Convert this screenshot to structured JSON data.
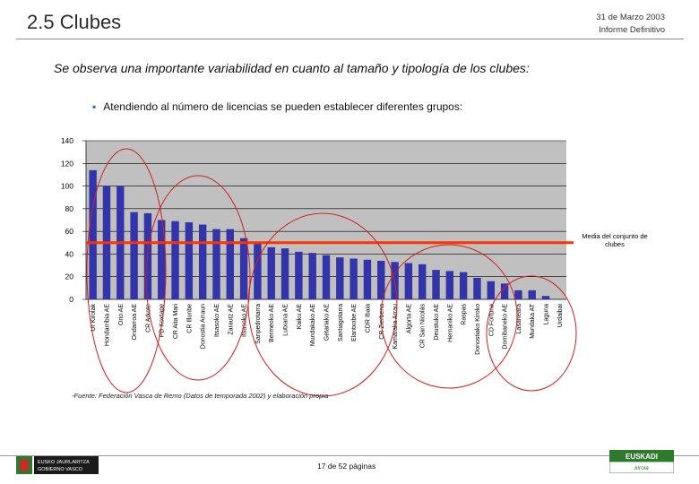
{
  "header": {
    "title": "2.5 Clubes",
    "date": "31 de Marzo 2003",
    "report": "Informe Definitivo"
  },
  "subtitle": "Se observa una importante variabilidad en cuanto al tamaño y tipología de los clubes:",
  "bullet": "Atendiendo al número de licencias se pueden establecer diferentes grupos:",
  "source": "Fuente: Federación Vasca de Remo (Datos de temporada 2002) y elaboración propia",
  "footer": {
    "page": "17 de 52 páginas",
    "left_logo_line1": "EUSKO JAURLARITZA",
    "left_logo_line2": "GOBIERNO VASCO",
    "right_logo_line1": "EUSKADI",
    "right_logo_line2": "kirola"
  },
  "colors": {
    "plot_bg": "#c0c0c0",
    "bar": "#3333aa",
    "mean_line": "#ff3300",
    "circle": "#cc2222"
  },
  "chart_data": {
    "type": "bar",
    "title": "",
    "xlabel": "",
    "ylabel": "",
    "ylim": [
      0,
      140
    ],
    "yticks": [
      0,
      20,
      40,
      60,
      80,
      100,
      120,
      140
    ],
    "grid": true,
    "categories": [
      "Ur Kirolak",
      "Hondarribia AE",
      "Orio AE",
      "Ondarroa AE",
      "CR Arkote",
      "PD Koxtape",
      "CR Aita Mari",
      "CR Illunbe",
      "Donostia Arraun",
      "Itsasoko AE",
      "Zarautz AE",
      "Itsasoko AE",
      "Sanpedrotarra",
      "Bermeoko AE",
      "Lutxana AE",
      "Kaiku AE",
      "Mundakako AE",
      "Getariako AE",
      "Santiagotarra",
      "Elantxobe AE",
      "CDR Ibaia",
      "CR Zierbena",
      "Kamaraka Arrau",
      "Algorta AE",
      "CR San Nicolás",
      "Deustuko AE",
      "Hernaniko AE",
      "Raspas",
      "Donostiako Kiroko",
      "CD Fortuna",
      "Dornibaneko AE",
      "Lasarteara",
      "Mundaka AT",
      "Laguna",
      "Urdaibai"
    ],
    "values": [
      114,
      100,
      100,
      77,
      76,
      70,
      69,
      68,
      66,
      62,
      62,
      54,
      49,
      46,
      45,
      42,
      41,
      39,
      37,
      36,
      35,
      34,
      33,
      32,
      31,
      26,
      25,
      24,
      19,
      16,
      14,
      8,
      8,
      3,
      0
    ],
    "mean": 50,
    "mean_label": "Media del conjunto de clubes"
  }
}
